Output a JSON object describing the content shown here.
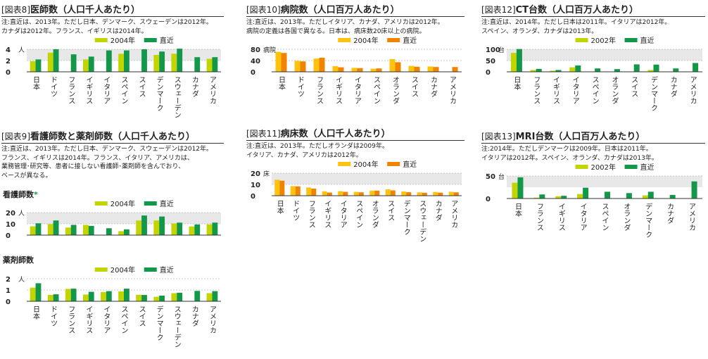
{
  "colors": {
    "light": "#c2d500",
    "dark": "#13984a",
    "yellow": "#ffc20e",
    "orange": "#f08300",
    "band": "#e8e8e8"
  },
  "panels": {
    "p8": {
      "prefix": "[図表8]",
      "title": "医師数（人口千人あたり）",
      "note": [
        "注:直近は、2013年。ただし日本、デンマーク、スウェーデンは2012年。",
        "カナダは2012年。フランス、イギリスは2014年。"
      ]
    },
    "p9": {
      "prefix": "[図表9]",
      "title": "看護師数と薬剤師数（人口千人あたり）",
      "note": [
        "注:直近は、2013年。ただし日本、デンマーク、スウェーデンは2012年。",
        "フランス、イギリスは2014年。フランス、イタリア、アメリカは、",
        "業務管理･研究等、患者に接しない看護師･薬剤師を含んでおり、",
        "ベースが異なる。"
      ],
      "nurse_title": "看護師数",
      "nurse_mark": "*",
      "pharm_title": "薬剤師数"
    },
    "p10": {
      "prefix": "[図表10]",
      "title": "病院数（人口百万人あたり）",
      "note": [
        "注:直近は、2013年。ただしイタリア、カナダ、アメリカは2012年。",
        "病院の定義は各国で異なる。日本は、病床数20床以上の病院。"
      ]
    },
    "p11": {
      "prefix": "[図表11]",
      "title": "病床数（人口千人あたり）",
      "note": [
        "注:直近は、2013年。ただしオランダは2009年。",
        "イタリア、カナダ、アメリカは2012年。"
      ]
    },
    "p12": {
      "prefix": "[図表12]",
      "title": "CT台数（人口百万人あたり）",
      "note": [
        "注:直近は、2014年。ただし日本は2011年。イタリアは2012年。",
        "スペイン、オランダ、カナダは2013年。"
      ]
    },
    "p13": {
      "prefix": "[図表13]",
      "title": "MRI台数（人口百万人あたり）",
      "note": [
        "注:2014年。ただしデンマークは2009年。日本は2011年。",
        "イタリアは2012年。スペイン、オランダ、カナダは2013年。"
      ]
    }
  },
  "chart_data": [
    {
      "id": "doctors",
      "type": "bar",
      "unit": "人",
      "ylim": [
        0,
        4
      ],
      "yticks": [
        0,
        2,
        4
      ],
      "categories": [
        "日本",
        "ドイツ",
        "フランス",
        "イギリス",
        "イタリア",
        "スペイン",
        "スイス",
        "デンマーク",
        "スウェーデン",
        "カナダ",
        "アメリカ"
      ],
      "series": [
        {
          "name": "2004年",
          "color": "light",
          "values": [
            1.9,
            3.4,
            null,
            2.2,
            null,
            3.2,
            null,
            3.0,
            3.2,
            null,
            2.3
          ]
        },
        {
          "name": "直近",
          "color": "dark",
          "values": [
            2.2,
            4.0,
            3.1,
            2.7,
            3.8,
            3.8,
            4.0,
            3.6,
            4.1,
            2.6,
            2.6
          ]
        }
      ]
    },
    {
      "id": "nurses",
      "type": "bar",
      "unit": "人",
      "ylim": [
        0,
        20
      ],
      "yticks": [
        0,
        10,
        20
      ],
      "categories": [
        "日本",
        "ドイツ",
        "フランス",
        "イギリス",
        "イタリア",
        "スペイン",
        "スイス",
        "デンマーク",
        "スウェーデン",
        "カナダ",
        "アメリカ"
      ],
      "series": [
        {
          "name": "2004年",
          "color": "light",
          "values": [
            7.8,
            9.8,
            6.7,
            9.1,
            null,
            3.5,
            13.0,
            13.0,
            10.4,
            7.7,
            9.6
          ]
        },
        {
          "name": "直近",
          "color": "dark",
          "values": [
            10.5,
            13.0,
            9.1,
            8.2,
            6.1,
            5.1,
            17.4,
            16.5,
            11.1,
            9.5,
            11.1
          ]
        }
      ]
    },
    {
      "id": "pharmacists",
      "type": "bar",
      "unit": "人",
      "ylim": [
        0,
        2
      ],
      "yticks": [
        0,
        1,
        2
      ],
      "categories": [
        "日本",
        "ドイツ",
        "フランス",
        "イギリス",
        "イタリア",
        "スペイン",
        "スイス",
        "デンマーク",
        "スウェーデン",
        "カナダ",
        "アメリカ"
      ],
      "series": [
        {
          "name": "2004年",
          "color": "light",
          "values": [
            1.21,
            0.56,
            1.1,
            0.6,
            0.82,
            0.88,
            0.58,
            0.4,
            0.72,
            null,
            0.72
          ]
        },
        {
          "name": "直近",
          "color": "dark",
          "values": [
            1.6,
            0.62,
            1.12,
            0.84,
            0.9,
            1.12,
            0.56,
            0.5,
            0.76,
            0.92,
            0.9
          ]
        }
      ]
    },
    {
      "id": "hospitals",
      "type": "bar",
      "unit": "病院",
      "ylim": [
        0,
        80
      ],
      "yticks": [
        0,
        40,
        80
      ],
      "categories": [
        "日本",
        "ドイツ",
        "フランス",
        "イギリス",
        "イタリア",
        "スペイン",
        "オランダ",
        "スイス",
        "カナダ",
        "アメリカ"
      ],
      "series": [
        {
          "name": "2004年",
          "color": "yellow",
          "values": [
            71,
            39,
            47,
            20,
            14,
            11,
            45,
            21,
            19,
            null
          ]
        },
        {
          "name": "直近",
          "color": "orange",
          "values": [
            67,
            37,
            50,
            16,
            13,
            12,
            34,
            18,
            17,
            17
          ]
        }
      ]
    },
    {
      "id": "beds",
      "type": "bar",
      "unit": "床",
      "ylim": [
        0,
        20
      ],
      "yticks": [
        0,
        10,
        20
      ],
      "categories": [
        "日本",
        "ドイツ",
        "フランス",
        "イギリス",
        "イタリア",
        "スペイン",
        "オランダ",
        "スイス",
        "デンマーク",
        "スウェーデン",
        "カナダ",
        "アメリカ"
      ],
      "series": [
        {
          "name": "2004年",
          "color": "yellow",
          "values": [
            14.2,
            8.5,
            7.3,
            3.9,
            4.0,
            3.4,
            4.5,
            5.6,
            3.7,
            3.0,
            3.3,
            3.4
          ]
        },
        {
          "name": "直近",
          "color": "orange",
          "values": [
            13.3,
            8.3,
            6.3,
            2.8,
            3.4,
            3.0,
            4.5,
            4.7,
            3.1,
            2.6,
            2.7,
            3.0
          ]
        }
      ]
    },
    {
      "id": "ct",
      "type": "bar",
      "unit": "台",
      "ylim": [
        0,
        100
      ],
      "yticks": [
        0,
        50,
        100
      ],
      "categories": [
        "日本",
        "フランス",
        "イギリス",
        "イタリア",
        "スペイン",
        "オランダ",
        "スイス",
        "デンマーク",
        "カナダ",
        "アメリカ"
      ],
      "series": [
        {
          "name": "2002年",
          "color": "light",
          "values": [
            84,
            8,
            5,
            20,
            null,
            null,
            null,
            8,
            null,
            null
          ]
        },
        {
          "name": "直近",
          "color": "dark",
          "values": [
            101,
            13,
            8,
            28,
            15,
            12,
            33,
            32,
            15,
            39
          ]
        }
      ]
    },
    {
      "id": "mri",
      "type": "bar",
      "unit": "台",
      "ylim": [
        0,
        50
      ],
      "yticks": [
        0,
        50
      ],
      "categories": [
        "日本",
        "フランス",
        "イギリス",
        "イタリア",
        "スペイン",
        "オランダ",
        "デンマーク",
        "カナダ",
        "アメリカ"
      ],
      "series": [
        {
          "name": "2002年",
          "color": "light",
          "values": [
            35,
            2,
            5,
            10,
            null,
            null,
            7,
            null,
            null
          ]
        },
        {
          "name": "直近",
          "color": "dark",
          "values": [
            47,
            9,
            6,
            24,
            15,
            12,
            15,
            8,
            38
          ]
        }
      ]
    }
  ]
}
